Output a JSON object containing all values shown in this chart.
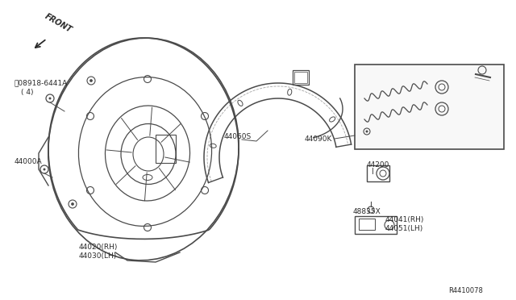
{
  "bg_color": "#ffffff",
  "line_color": "#4a4a4a",
  "text_color": "#2a2a2a",
  "fig_width": 6.4,
  "fig_height": 3.72,
  "dpi": 100,
  "labels": {
    "front": "FRONT",
    "p1a": "ⓝ08918-6441A",
    "p1b": "( 4)",
    "p2": "44000A",
    "p3a": "44020(RH)",
    "p3b": "44030(LH)",
    "p4": "44060S",
    "p5": "44090K",
    "p6": "44200",
    "p7": "48835X",
    "p8a": "44041(RH)",
    "p8b": "44051(LH)",
    "ref": "R4410078"
  }
}
